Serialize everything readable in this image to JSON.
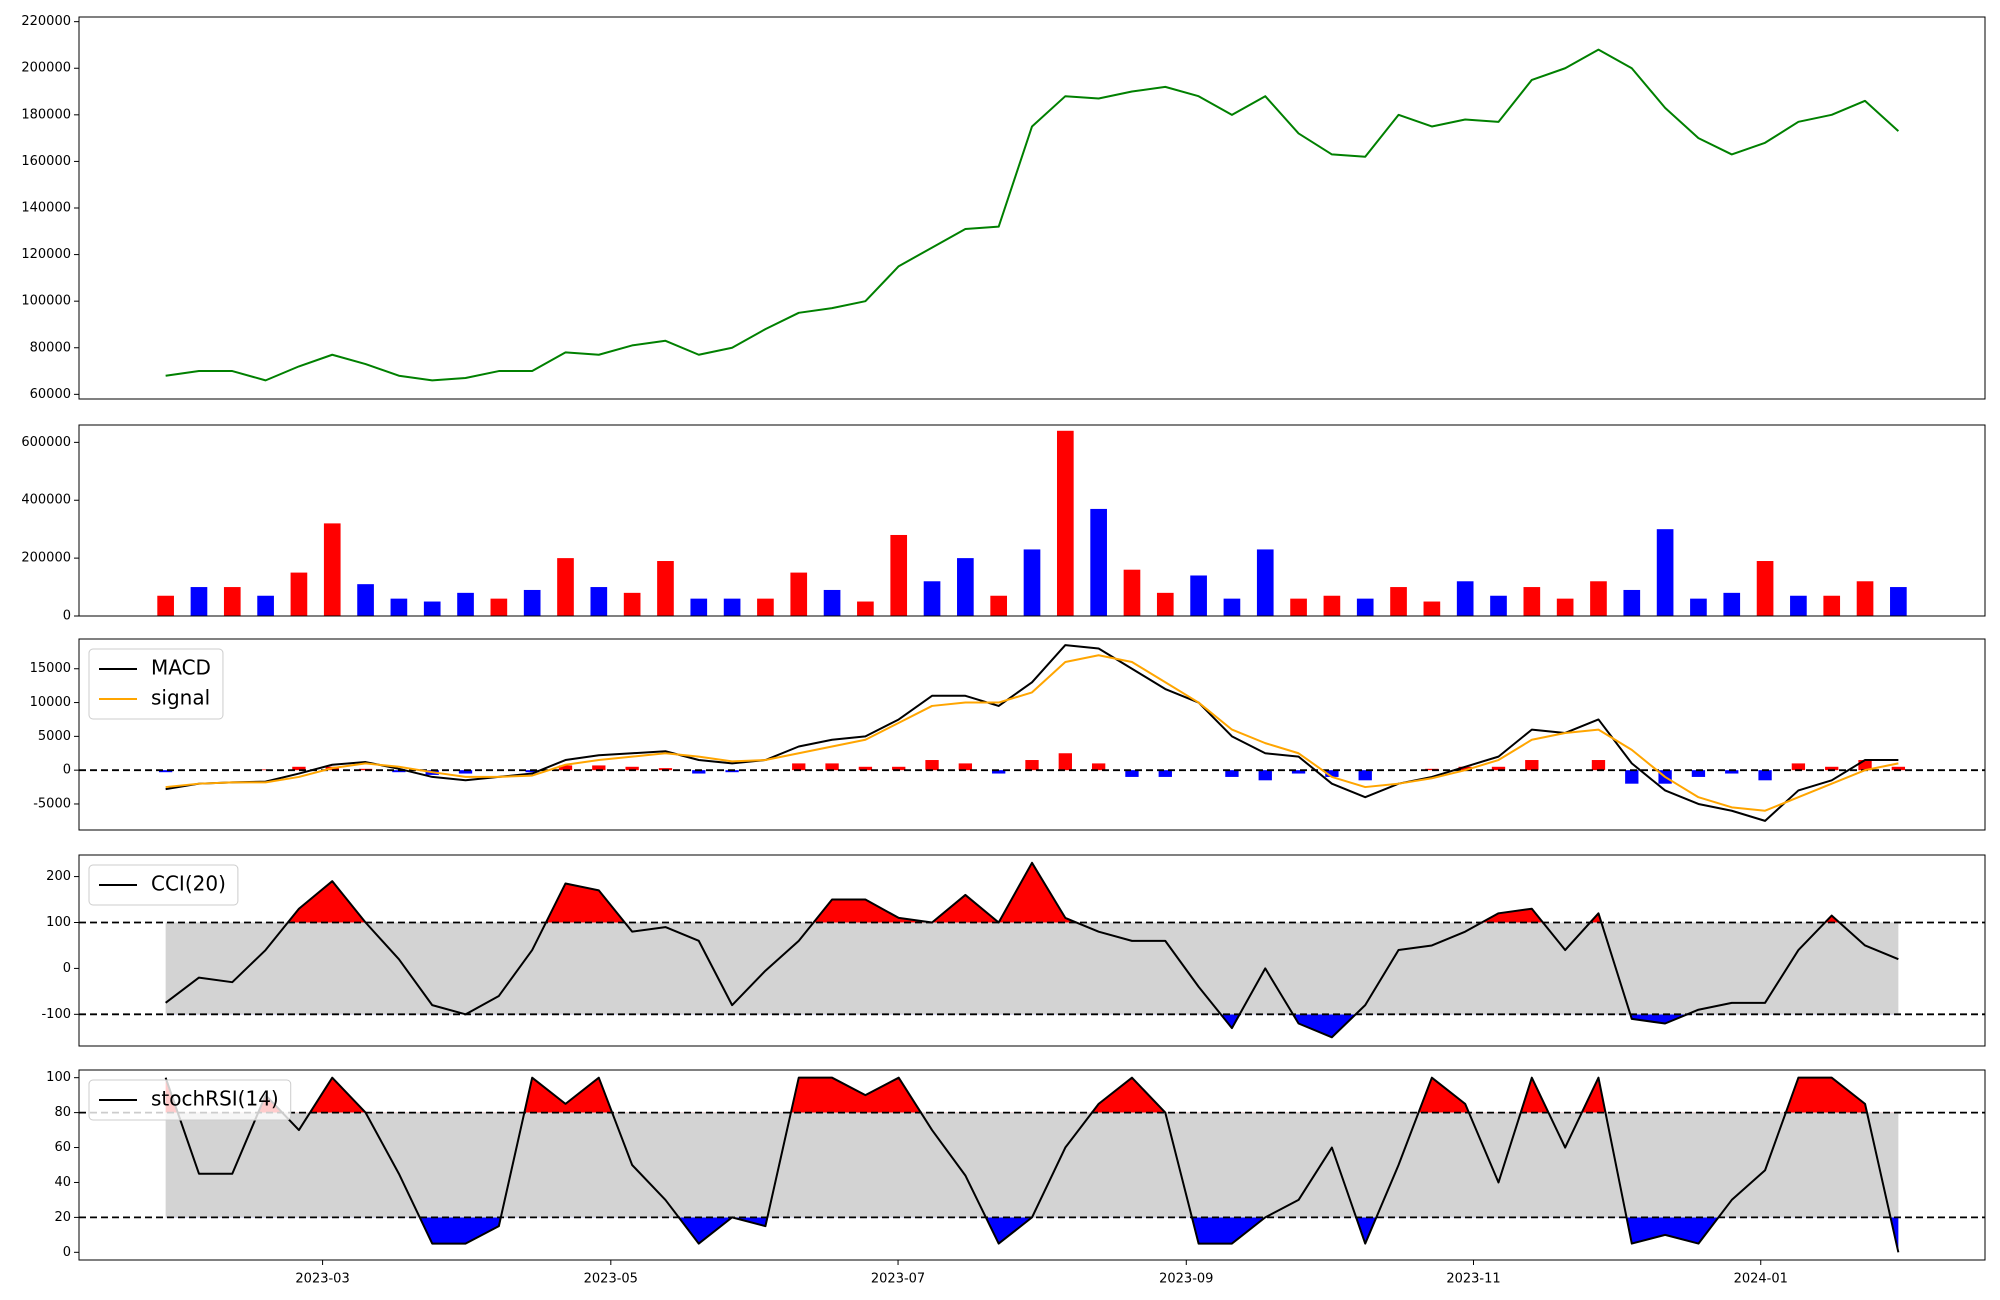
{
  "chart_data": [
    {
      "type": "line",
      "ylim": [
        58000,
        222000
      ],
      "yticks": [
        60000,
        80000,
        100000,
        120000,
        140000,
        160000,
        180000,
        200000,
        220000
      ],
      "series": [
        {
          "color": "green",
          "values": [
            68000,
            70000,
            70000,
            66000,
            72000,
            77000,
            73000,
            68000,
            66000,
            67000,
            70000,
            70000,
            78000,
            77000,
            81000,
            83000,
            77000,
            80000,
            88000,
            95000,
            97000,
            100000,
            115000,
            123000,
            131000,
            132000,
            175000,
            188000,
            187000,
            190000,
            192000,
            188000,
            180000,
            188000,
            172000,
            163000,
            162000,
            180000,
            175000,
            178000,
            177000,
            195000,
            200000,
            208000,
            200000,
            183000,
            170000,
            163000,
            168000,
            177000,
            180000,
            186000,
            173000
          ]
        }
      ]
    },
    {
      "type": "bar",
      "ylim": [
        0,
        660000
      ],
      "yticks": [
        0,
        200000,
        400000,
        600000
      ],
      "values": [
        70000,
        100000,
        100000,
        70000,
        150000,
        320000,
        110000,
        60000,
        50000,
        80000,
        60000,
        90000,
        200000,
        100000,
        80000,
        190000,
        60000,
        60000,
        60000,
        150000,
        90000,
        50000,
        280000,
        120000,
        200000,
        70000,
        230000,
        640000,
        370000,
        160000,
        80000,
        140000,
        60000,
        230000,
        60000,
        70000,
        60000,
        100000,
        50000,
        120000,
        70000,
        100000,
        60000,
        120000,
        90000,
        300000,
        60000,
        80000,
        190000,
        70000,
        70000,
        120000,
        100000
      ],
      "colors": [
        "red",
        "blue",
        "red",
        "blue",
        "red",
        "red",
        "blue",
        "blue",
        "blue",
        "blue",
        "red",
        "blue",
        "red",
        "blue",
        "red",
        "red",
        "blue",
        "blue",
        "red",
        "red",
        "blue",
        "red",
        "red",
        "blue",
        "blue",
        "red",
        "blue",
        "red",
        "blue",
        "red",
        "red",
        "blue",
        "blue",
        "blue",
        "red",
        "red",
        "blue",
        "red",
        "red",
        "blue",
        "blue",
        "red",
        "red",
        "red",
        "blue",
        "blue",
        "blue",
        "blue",
        "red",
        "blue",
        "red",
        "red",
        "blue"
      ]
    },
    {
      "type": "line",
      "ylim": [
        -8850,
        19400
      ],
      "yticks": [
        -5000,
        0,
        5000,
        10000,
        15000
      ],
      "hlines": [
        0
      ],
      "legend": "upper left",
      "series": [
        {
          "name": "MACD",
          "color": "black",
          "values": [
            -2800,
            -2000,
            -1800,
            -1700,
            -500,
            800,
            1200,
            200,
            -1000,
            -1500,
            -1000,
            -500,
            1500,
            2200,
            2500,
            2800,
            1500,
            1000,
            1500,
            3500,
            4500,
            5000,
            7500,
            11000,
            11000,
            9500,
            13000,
            18500,
            18000,
            15000,
            12000,
            10000,
            5000,
            2500,
            2000,
            -2000,
            -4000,
            -2000,
            -1000,
            500,
            2000,
            6000,
            5500,
            7500,
            1000,
            -3000,
            -5000,
            -6000,
            -7500,
            -3000,
            -1500,
            1500,
            1500
          ]
        },
        {
          "name": "signal",
          "color": "orange",
          "values": [
            -2500,
            -2000,
            -1800,
            -1800,
            -1000,
            300,
            1000,
            500,
            -300,
            -1000,
            -1000,
            -800,
            800,
            1500,
            2000,
            2500,
            2000,
            1300,
            1500,
            2500,
            3500,
            4500,
            7000,
            9500,
            10000,
            10000,
            11500,
            16000,
            17000,
            16000,
            13000,
            10000,
            6000,
            4000,
            2500,
            -1000,
            -2500,
            -2000,
            -1200,
            0,
            1500,
            4500,
            5500,
            6000,
            3000,
            -1000,
            -4000,
            -5500,
            -6000,
            -4000,
            -2000,
            0,
            1000
          ]
        }
      ],
      "bars": {
        "positive_color": "red",
        "negative_color": "blue",
        "values": [
          -300,
          0,
          0,
          100,
          500,
          500,
          200,
          -300,
          -700,
          -500,
          0,
          -300,
          700,
          700,
          500,
          300,
          -500,
          -300,
          0,
          1000,
          1000,
          500,
          500,
          1500,
          1000,
          -500,
          1500,
          2500,
          1000,
          -1000,
          -1000,
          0,
          -1000,
          -1500,
          -500,
          -1000,
          -1500,
          0,
          200,
          500,
          500,
          1500,
          0,
          1500,
          -2000,
          -2000,
          -1000,
          -500,
          -1500,
          1000,
          500,
          1500,
          500
        ]
      }
    },
    {
      "type": "line",
      "ylim": [
        -169,
        247
      ],
      "yticks": [
        -100,
        0,
        100,
        200
      ],
      "hlines": [
        -100,
        100
      ],
      "legend": "upper left",
      "band": {
        "range": [
          -100,
          100
        ],
        "color": "lightgray",
        "above_color": "red",
        "below_color": "blue"
      },
      "series": [
        {
          "name": "CCI(20)",
          "color": "black",
          "values": [
            -75,
            -20,
            -30,
            40,
            130,
            190,
            100,
            20,
            -80,
            -100,
            -60,
            40,
            185,
            170,
            80,
            90,
            60,
            -80,
            -5,
            60,
            150,
            150,
            110,
            100,
            160,
            100,
            230,
            110,
            80,
            60,
            60,
            -40,
            -130,
            0,
            -120,
            -150,
            -80,
            40,
            50,
            80,
            120,
            130,
            40,
            120,
            -110,
            -120,
            -90,
            -75,
            -75,
            40,
            115,
            50,
            20
          ]
        }
      ]
    },
    {
      "type": "line",
      "ylim": [
        -4.4,
        104.4
      ],
      "yticks": [
        0,
        20,
        40,
        60,
        80,
        100
      ],
      "hlines": [
        20,
        80
      ],
      "legend": "upper left",
      "band": {
        "range": [
          20,
          80
        ],
        "color": "lightgray",
        "above_color": "red",
        "below_color": "blue"
      },
      "series": [
        {
          "name": "stochRSI(14)",
          "color": "black",
          "values": [
            100,
            45,
            45,
            90,
            70,
            100,
            80,
            45,
            5,
            5,
            15,
            100,
            85,
            100,
            50,
            30,
            5,
            20,
            15,
            100,
            100,
            90,
            100,
            70,
            44,
            5,
            20,
            60,
            85,
            100,
            80,
            5,
            5,
            20,
            30,
            60,
            5,
            50,
            100,
            85,
            40,
            100,
            60,
            100,
            5,
            10,
            5,
            30,
            47,
            100,
            100,
            85,
            0
          ]
        }
      ],
      "xlim": [
        -2.6,
        54.6
      ],
      "xticks": [
        {
          "value": 4.71,
          "label": "2023-03"
        },
        {
          "value": 13.36,
          "label": "2023-05"
        },
        {
          "value": 21.98,
          "label": "2023-07"
        },
        {
          "value": 30.63,
          "label": "2023-09"
        },
        {
          "value": 39.25,
          "label": "2023-11"
        },
        {
          "value": 47.87,
          "label": "2024-01"
        }
      ]
    }
  ]
}
